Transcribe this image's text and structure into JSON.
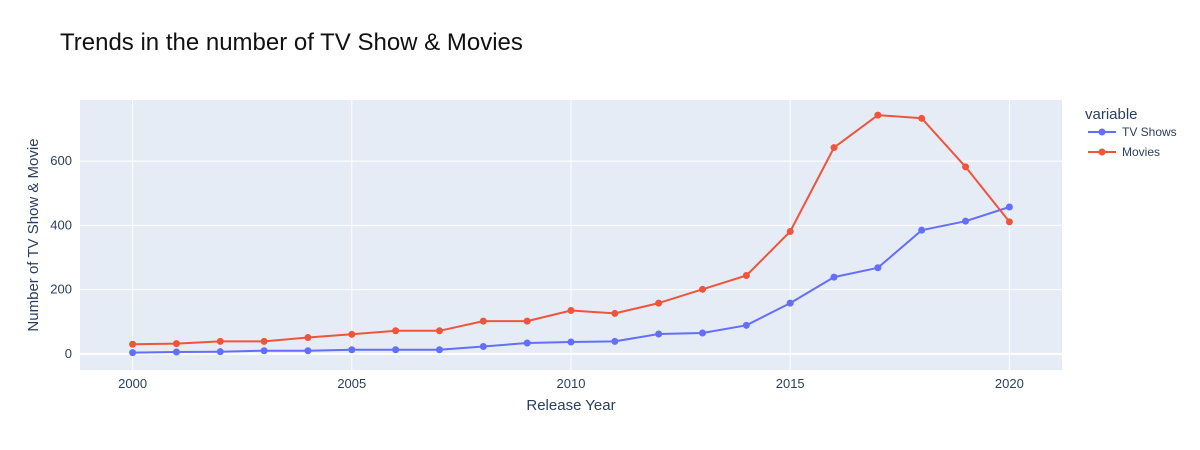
{
  "chart_data": {
    "type": "line",
    "title": "Trends in the number of TV Show & Movies",
    "xlabel": "Release Year",
    "ylabel": "Number of TV Show & Movie",
    "xlim": [
      1998.8,
      2021.2
    ],
    "ylim": [
      -50,
      790
    ],
    "x_ticks": [
      2000,
      2005,
      2010,
      2015,
      2020
    ],
    "y_ticks": [
      0,
      200,
      400,
      600
    ],
    "grid": true,
    "legend": {
      "title": "variable",
      "placement": "right"
    },
    "x": [
      2000,
      2001,
      2002,
      2003,
      2004,
      2005,
      2006,
      2007,
      2008,
      2009,
      2010,
      2011,
      2012,
      2013,
      2014,
      2015,
      2016,
      2017,
      2018,
      2019,
      2020
    ],
    "series": [
      {
        "name": "TV Shows",
        "color": "#636efa",
        "values": [
          4,
          6,
          7,
          10,
          10,
          13,
          13,
          13,
          23,
          34,
          37,
          39,
          62,
          65,
          89,
          158,
          239,
          268,
          385,
          413,
          457
        ]
      },
      {
        "name": "Movies",
        "color": "#ef553b",
        "values": [
          30,
          32,
          39,
          39,
          51,
          61,
          72,
          72,
          102,
          102,
          135,
          126,
          158,
          201,
          244,
          381,
          642,
          743,
          733,
          582,
          411
        ]
      }
    ],
    "colors": {
      "plot_bg": "#e5ecf6",
      "grid": "#ffffff",
      "text": "#2a3f5f"
    }
  }
}
